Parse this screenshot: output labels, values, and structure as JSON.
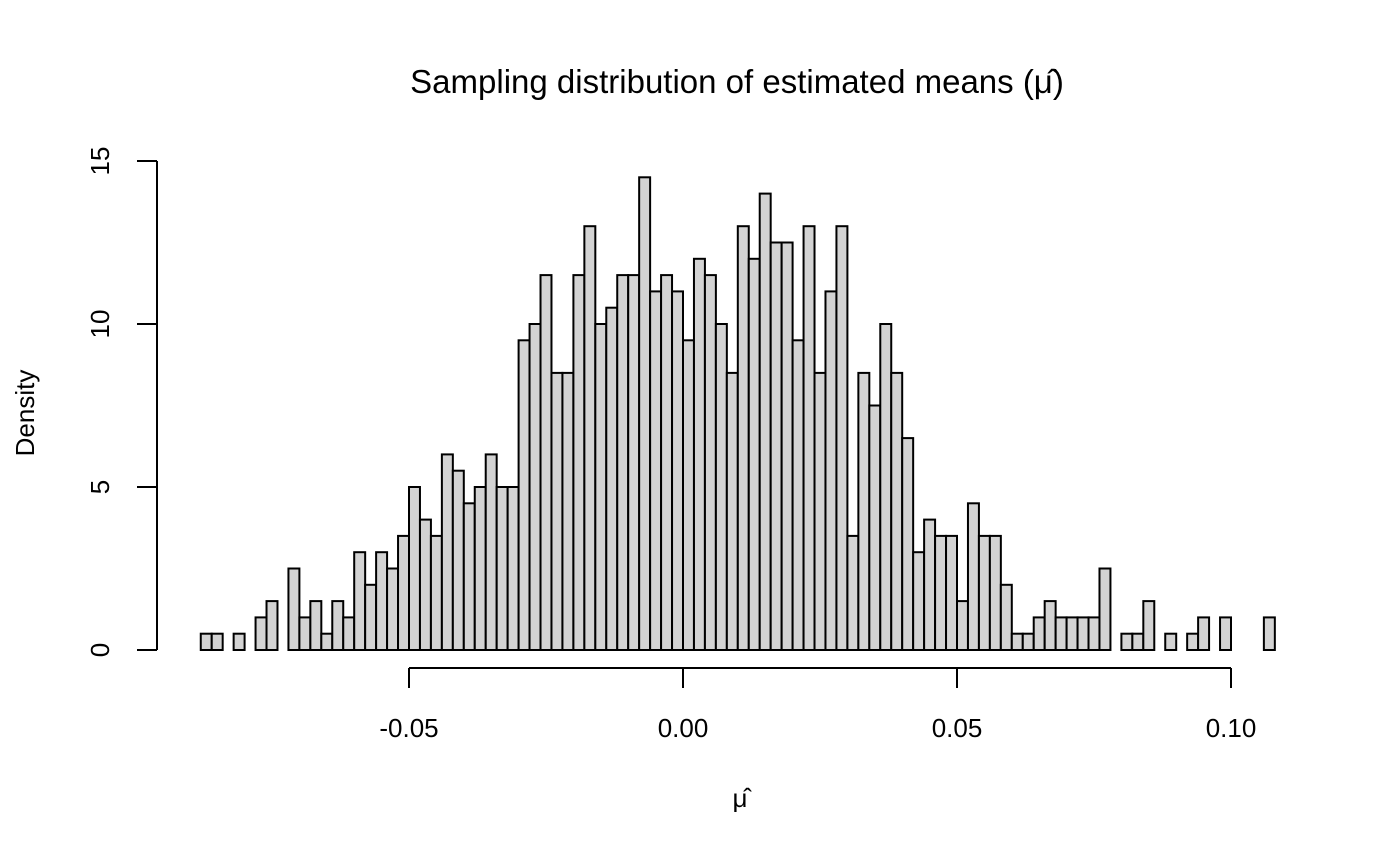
{
  "chart_data": {
    "type": "bar",
    "title": "Sampling distribution of estimated means (μ̂)",
    "xlabel": "μ̂",
    "ylabel": "Density",
    "xlim": [
      -0.088,
      0.108
    ],
    "ylim": [
      0,
      15
    ],
    "bin_width": 0.002,
    "first_bin_start": -0.088,
    "x_ticks": [
      {
        "value": -0.05,
        "label": "-0.05"
      },
      {
        "value": 0.0,
        "label": "0.00"
      },
      {
        "value": 0.05,
        "label": "0.05"
      },
      {
        "value": 0.1,
        "label": "0.10"
      }
    ],
    "y_ticks": [
      {
        "value": 0,
        "label": "0"
      },
      {
        "value": 5,
        "label": "5"
      },
      {
        "value": 10,
        "label": "10"
      },
      {
        "value": 15,
        "label": "15"
      }
    ],
    "values": [
      0.5,
      0.5,
      0,
      0.5,
      0,
      1,
      1.5,
      0,
      2.5,
      1,
      1.5,
      0.5,
      1.5,
      1,
      3,
      2,
      3,
      2.5,
      3.5,
      5,
      4,
      3.5,
      6,
      5.5,
      4.5,
      5,
      6,
      5,
      5,
      9.5,
      10,
      11.5,
      8.5,
      8.5,
      11.5,
      13,
      10,
      10.5,
      11.5,
      11.5,
      14.5,
      11,
      11.5,
      11,
      9.5,
      12,
      11.5,
      10,
      8.5,
      13,
      12,
      14,
      12.5,
      12.5,
      9.5,
      13,
      8.5,
      11,
      13,
      3.5,
      8.5,
      7.5,
      10,
      8.5,
      6.5,
      3,
      4,
      3.5,
      3.5,
      1.5,
      4.5,
      3.5,
      3.5,
      2,
      0.5,
      0.5,
      1,
      1.5,
      1,
      1,
      1,
      1,
      2.5,
      0,
      0.5,
      0.5,
      1.5,
      0,
      0.5,
      0,
      0.5,
      1,
      0,
      1,
      0,
      0,
      0,
      1
    ],
    "grid": false,
    "legend": "none"
  }
}
